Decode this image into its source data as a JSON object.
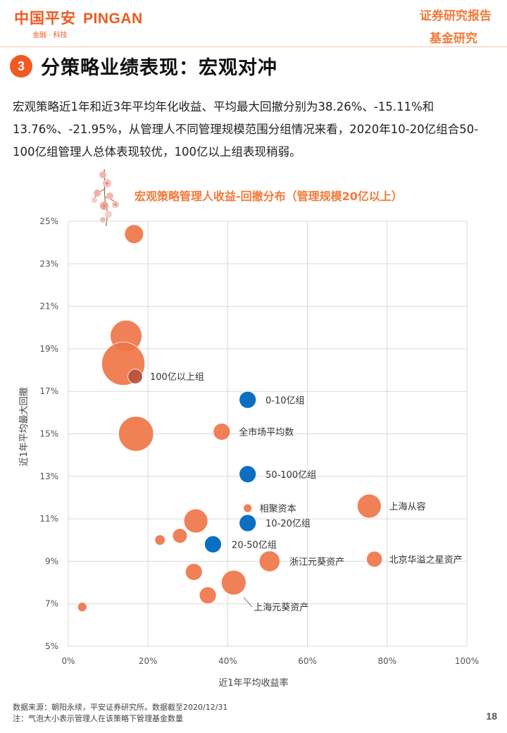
{
  "header": {
    "logo_cn": "中国平安",
    "logo_en": "PINGAN",
    "logo_tagline": "金融 · 科技",
    "report_type": "证券研究报告",
    "report_sub": "基金研究"
  },
  "section": {
    "number": "3",
    "title": "分策略业绩表现：宏观对冲"
  },
  "body_text": "宏观策略近1年和近3年平均年化收益、平均最大回撤分别为38.26%、-15.11%和13.76%、-21.95%，从管理人不同管理规模范围分组情况来看，2020年10-20亿组合50-100亿组管理人总体表现较优，100亿以上组表现稍弱。",
  "chart_data": {
    "type": "scatter",
    "title": "宏观策略管理人收益-回撤分布（管理规模20亿以上）",
    "xlabel": "近1年平均收益率",
    "ylabel": "近1年平均最大回撤",
    "xlim": [
      0,
      100
    ],
    "ylim": [
      5,
      25
    ],
    "x_ticks": [
      "0%",
      "20%",
      "40%",
      "60%",
      "80%",
      "100%"
    ],
    "y_ticks": [
      "5%",
      "7%",
      "9%",
      "11%",
      "13%",
      "15%",
      "17%",
      "19%",
      "21%",
      "23%",
      "25%"
    ],
    "grid": true,
    "colors": {
      "manager": "#ef7548",
      "group": "#0a6fc2",
      "grid": "#d9d9d9",
      "axis_text": "#555555"
    },
    "series": [
      {
        "points": [
          {
            "x": 16.5,
            "y": 24.4,
            "size": 5
          },
          {
            "x": 14.5,
            "y": 19.6,
            "size": 14
          },
          {
            "x": 13.8,
            "y": 18.3,
            "size": 26
          },
          {
            "x": 16.8,
            "y": 17.7,
            "size": 3,
            "color": "#b7533a"
          },
          {
            "x": 17.0,
            "y": 15.0,
            "size": 17
          },
          {
            "x": 38.5,
            "y": 15.1,
            "size": 4
          },
          {
            "x": 45.0,
            "y": 11.5,
            "size": 1
          },
          {
            "x": 75.5,
            "y": 11.6,
            "size": 8
          },
          {
            "x": 32.0,
            "y": 10.9,
            "size": 8
          },
          {
            "x": 28.0,
            "y": 10.2,
            "size": 3
          },
          {
            "x": 23.0,
            "y": 10.0,
            "size": 1.5
          },
          {
            "x": 50.5,
            "y": 9.0,
            "size": 6
          },
          {
            "x": 76.8,
            "y": 9.1,
            "size": 3.5
          },
          {
            "x": 31.5,
            "y": 8.5,
            "size": 4
          },
          {
            "x": 41.5,
            "y": 8.0,
            "size": 8.5
          },
          {
            "x": 35.0,
            "y": 7.4,
            "size": 4
          },
          {
            "x": 3.5,
            "y": 6.85,
            "size": 1.2
          }
        ]
      },
      {
        "points": [
          {
            "x": 45.0,
            "y": 16.6,
            "size": 4
          },
          {
            "x": 45.0,
            "y": 13.1,
            "size": 4
          },
          {
            "x": 45.0,
            "y": 10.8,
            "size": 4
          },
          {
            "x": 36.3,
            "y": 9.8,
            "size": 4
          }
        ]
      }
    ],
    "annotations": [
      {
        "text": "100亿以上组",
        "x": 20.5,
        "y": 17.7
      },
      {
        "text": "0-10亿组",
        "x": 49.5,
        "y": 16.6
      },
      {
        "text": "全市场平均数",
        "x": 42.8,
        "y": 15.1
      },
      {
        "text": "50-100亿组",
        "x": 49.5,
        "y": 13.1
      },
      {
        "text": "相聚资本",
        "x": 48.0,
        "y": 11.5
      },
      {
        "text": "10-20亿组",
        "x": 49.5,
        "y": 10.8
      },
      {
        "text": "上海从容",
        "x": 80.5,
        "y": 11.6
      },
      {
        "text": "20-50亿组",
        "x": 41.0,
        "y": 9.8
      },
      {
        "text": "浙江元葵资产",
        "x": 55.5,
        "y": 9.0
      },
      {
        "text": "北京华溢之星资产",
        "x": 80.5,
        "y": 9.1
      },
      {
        "text": "上海元葵资产",
        "x": 46.5,
        "y": 6.85,
        "leader_to": {
          "x": 44.0,
          "y": 7.3
        }
      }
    ]
  },
  "footer": {
    "source": "数据来源：朝阳永续，平安证券研究所。数据截至2020/12/31",
    "note": "注：气泡大小表示管理人在该策略下管理基金数量",
    "page": "18"
  }
}
